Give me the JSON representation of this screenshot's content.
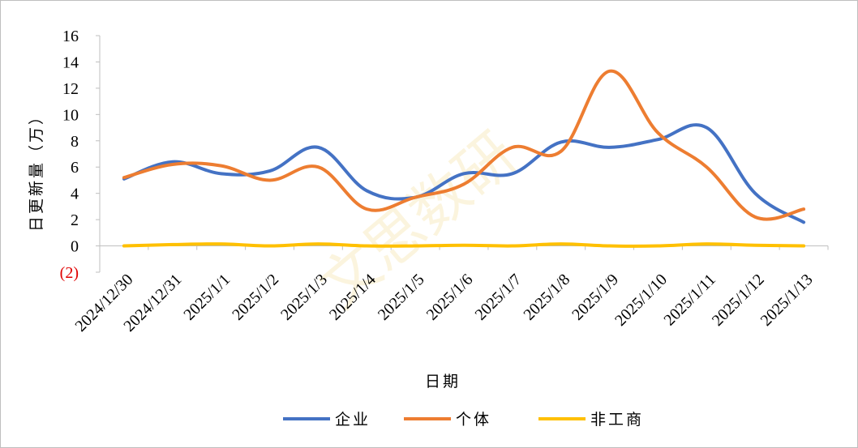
{
  "chart_data": {
    "type": "line",
    "xlabel": "日期",
    "ylabel": "日更新量（万）",
    "ylim": [
      -2,
      16
    ],
    "yticks": [
      16,
      14,
      12,
      10,
      8,
      6,
      4,
      2,
      0,
      -2
    ],
    "ytick_labels": [
      "16",
      "14",
      "12",
      "10",
      "8",
      "6",
      "4",
      "2",
      "0",
      "(2)"
    ],
    "grid": false,
    "legend_position": "bottom",
    "categories": [
      "2024/12/30",
      "2024/12/31",
      "2025/1/1",
      "2025/1/2",
      "2025/1/3",
      "2025/1/4",
      "2025/1/5",
      "2025/1/6",
      "2025/1/7",
      "2025/1/8",
      "2025/1/9",
      "2025/1/10",
      "2025/1/11",
      "2025/1/12",
      "2025/1/13"
    ],
    "series": [
      {
        "name": "企业",
        "color": "#4472c4",
        "values": [
          5.1,
          6.4,
          5.5,
          5.7,
          7.5,
          4.2,
          3.7,
          5.5,
          5.5,
          7.9,
          7.5,
          8.1,
          9.0,
          4.0,
          1.8
        ]
      },
      {
        "name": "个体",
        "color": "#ed7d31",
        "values": [
          5.2,
          6.2,
          6.1,
          5.0,
          6.0,
          2.8,
          3.7,
          4.7,
          7.5,
          7.2,
          13.3,
          8.6,
          6.0,
          2.2,
          2.8
        ]
      },
      {
        "name": "非工商",
        "color": "#ffc000",
        "values": [
          0.0,
          0.1,
          0.15,
          0.0,
          0.15,
          0.0,
          0.0,
          0.05,
          0.0,
          0.15,
          0.0,
          0.0,
          0.15,
          0.05,
          0.0
        ]
      }
    ]
  }
}
